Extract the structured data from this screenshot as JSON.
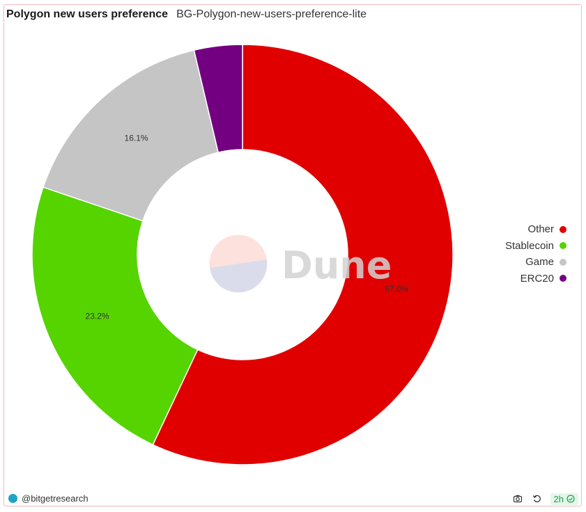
{
  "header": {
    "title": "Polygon new users preference",
    "subtitle": "BG-Polygon-new-users-preference-lite"
  },
  "chart_data": {
    "type": "pie",
    "donut": true,
    "slices": [
      {
        "label": "Other",
        "value": 57.0,
        "color": "#e00000",
        "data_label": "57.0%"
      },
      {
        "label": "Stablecoin",
        "value": 23.2,
        "color": "#55d400",
        "data_label": "23.2%"
      },
      {
        "label": "Game",
        "value": 16.1,
        "color": "#c5c5c5",
        "data_label": "16.1%"
      },
      {
        "label": "ERC20",
        "value": 3.7,
        "color": "#730080",
        "data_label": ""
      }
    ],
    "legend_position": "right",
    "watermark": "Dune"
  },
  "footer": {
    "author": "@bitgetresearch",
    "refresh_badge": "2h",
    "icons": [
      "camera-icon",
      "refresh-icon",
      "check-circle-icon"
    ]
  }
}
